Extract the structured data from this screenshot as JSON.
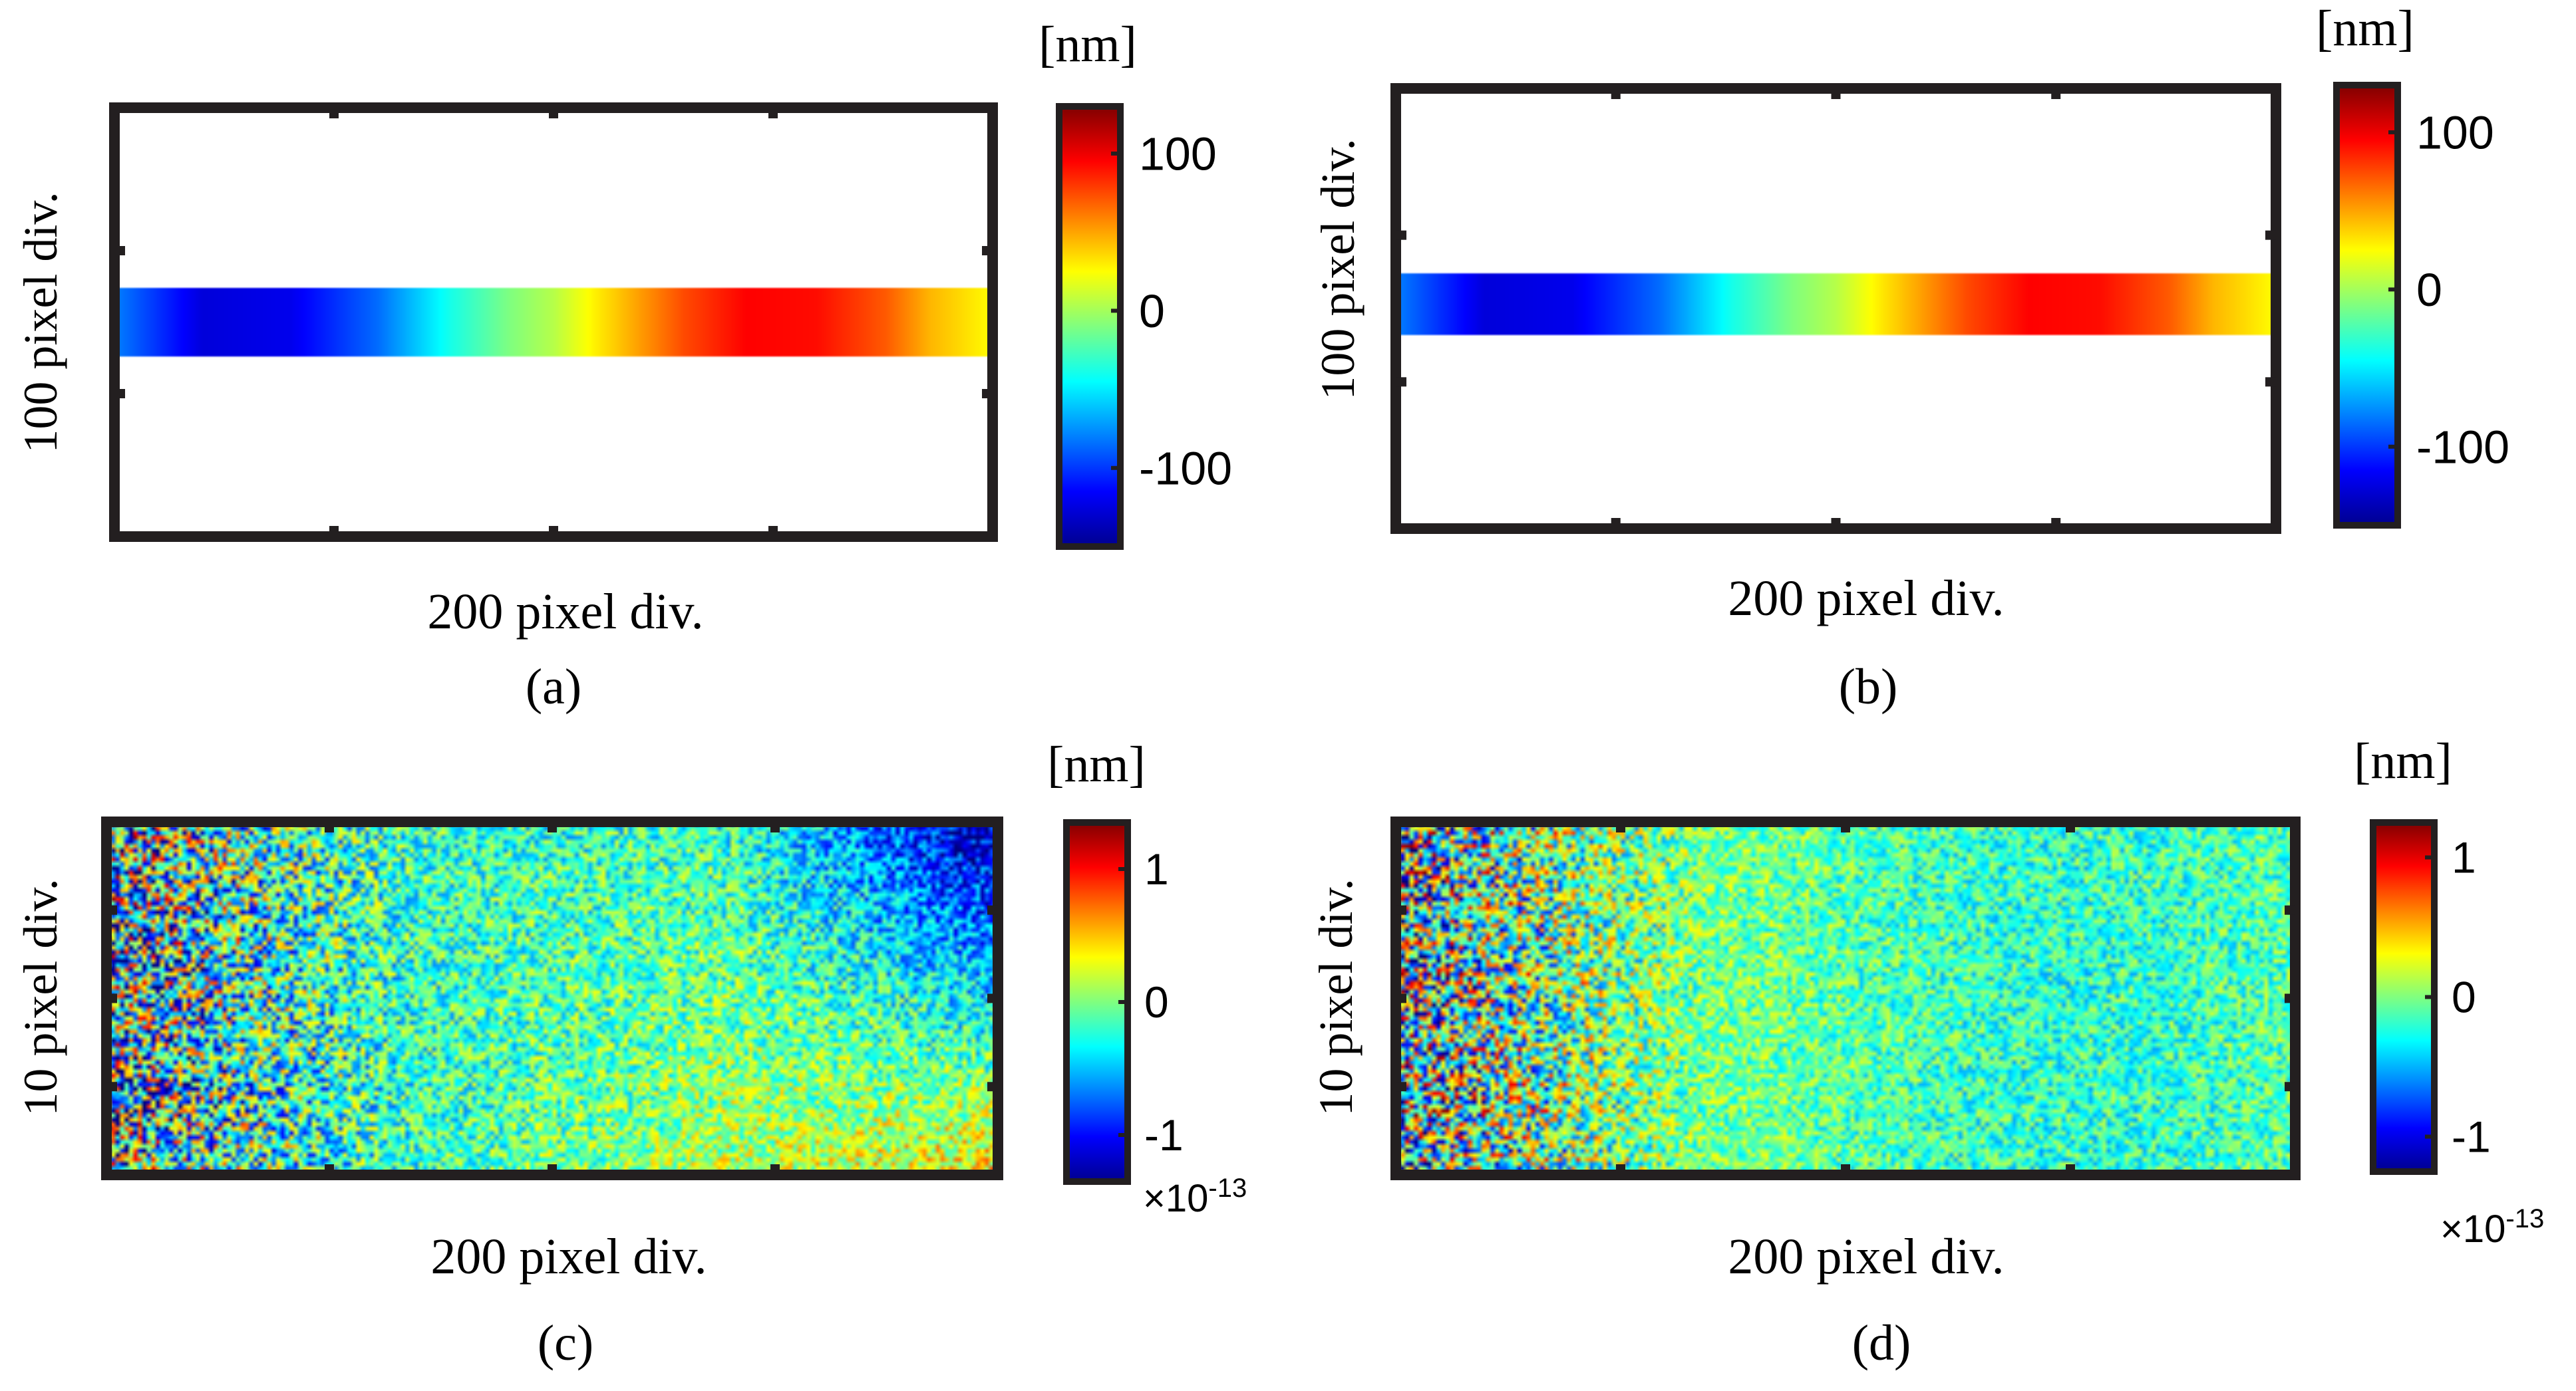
{
  "chart_data": [
    {
      "type": "heatmap",
      "panel_label": "(a)",
      "xlabel": "200 pixel div.",
      "ylabel": "100 pixel div.",
      "unit": "[nm]",
      "colorbar": {
        "ticks": [
          "100",
          "0",
          "-100"
        ],
        "tick_values": [
          100,
          0,
          -100
        ],
        "range": [
          -150,
          130
        ],
        "exponent": ""
      },
      "field": {
        "band_rows": [
          0.42,
          0.58
        ],
        "profile_x": [
          0,
          0.1,
          0.2,
          0.3,
          0.38,
          0.45,
          0.5,
          0.55,
          0.65,
          0.72,
          0.8,
          0.88,
          0.93,
          1.0
        ],
        "profile_value": [
          -80,
          -125,
          -120,
          -85,
          -40,
          -10,
          5,
          30,
          75,
          95,
          92,
          70,
          45,
          25
        ],
        "noise": 0
      }
    },
    {
      "type": "heatmap",
      "panel_label": "(b)",
      "xlabel": "200 pixel div.",
      "ylabel": "100 pixel div.",
      "unit": "[nm]",
      "colorbar": {
        "ticks": [
          "100",
          "0",
          "-100"
        ],
        "tick_values": [
          100,
          0,
          -100
        ],
        "range": [
          -150,
          130
        ],
        "exponent": ""
      },
      "field": {
        "band_rows": [
          0.42,
          0.56
        ],
        "profile_x": [
          0,
          0.1,
          0.2,
          0.3,
          0.38,
          0.45,
          0.5,
          0.55,
          0.65,
          0.72,
          0.8,
          0.88,
          0.93,
          1.0
        ],
        "profile_value": [
          -80,
          -125,
          -120,
          -85,
          -40,
          -10,
          5,
          30,
          75,
          95,
          92,
          70,
          45,
          25
        ],
        "noise": 0
      }
    },
    {
      "type": "heatmap",
      "panel_label": "(c)",
      "xlabel": "200 pixel div.",
      "ylabel": "10 pixel div.",
      "unit": "[nm]",
      "colorbar": {
        "ticks": [
          "1",
          "0",
          "-1"
        ],
        "tick_values": [
          1,
          0,
          -1
        ],
        "range": [
          -1.35,
          1.35
        ],
        "exponent": "×10-13"
      },
      "field": {
        "rows": 80,
        "cols": 200,
        "base": -0.2,
        "noise": 0.45,
        "left_noise": 0.9,
        "right_trend": -0.5
      }
    },
    {
      "type": "heatmap",
      "panel_label": "(d)",
      "xlabel": "200 pixel div.",
      "ylabel": "10 pixel div.",
      "unit": "[nm]",
      "colorbar": {
        "ticks": [
          "1",
          "0",
          "-1"
        ],
        "tick_values": [
          1,
          0,
          -1
        ],
        "range": [
          -1.25,
          1.25
        ],
        "exponent": "×10-13"
      },
      "field": {
        "rows": 80,
        "cols": 200,
        "base": -0.1,
        "noise": 0.35,
        "left_noise": 0.9,
        "right_trend": 0
      }
    }
  ]
}
